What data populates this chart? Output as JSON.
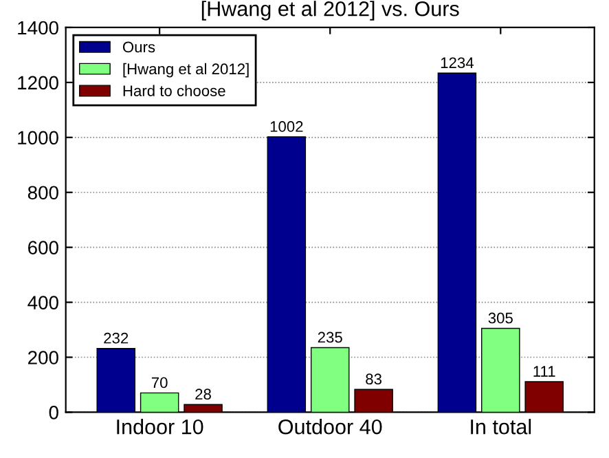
{
  "chart_data": {
    "type": "bar",
    "title": "[Hwang et al 2012] vs. Ours",
    "categories": [
      "Indoor 10",
      "Outdoor 40",
      "In total"
    ],
    "series": [
      {
        "name": "Ours",
        "color": "#00008f",
        "values": [
          232,
          1002,
          1234
        ]
      },
      {
        "name": "[Hwang et al 2012]",
        "color": "#80ff80",
        "values": [
          70,
          235,
          305
        ]
      },
      {
        "name": "Hard to choose",
        "color": "#800000",
        "values": [
          28,
          83,
          111
        ]
      }
    ],
    "ylim": [
      0,
      1400
    ],
    "yticks": [
      0,
      200,
      400,
      600,
      800,
      1000,
      1200,
      1400
    ],
    "grid": "y",
    "legend": "top left",
    "data_labels": true
  }
}
